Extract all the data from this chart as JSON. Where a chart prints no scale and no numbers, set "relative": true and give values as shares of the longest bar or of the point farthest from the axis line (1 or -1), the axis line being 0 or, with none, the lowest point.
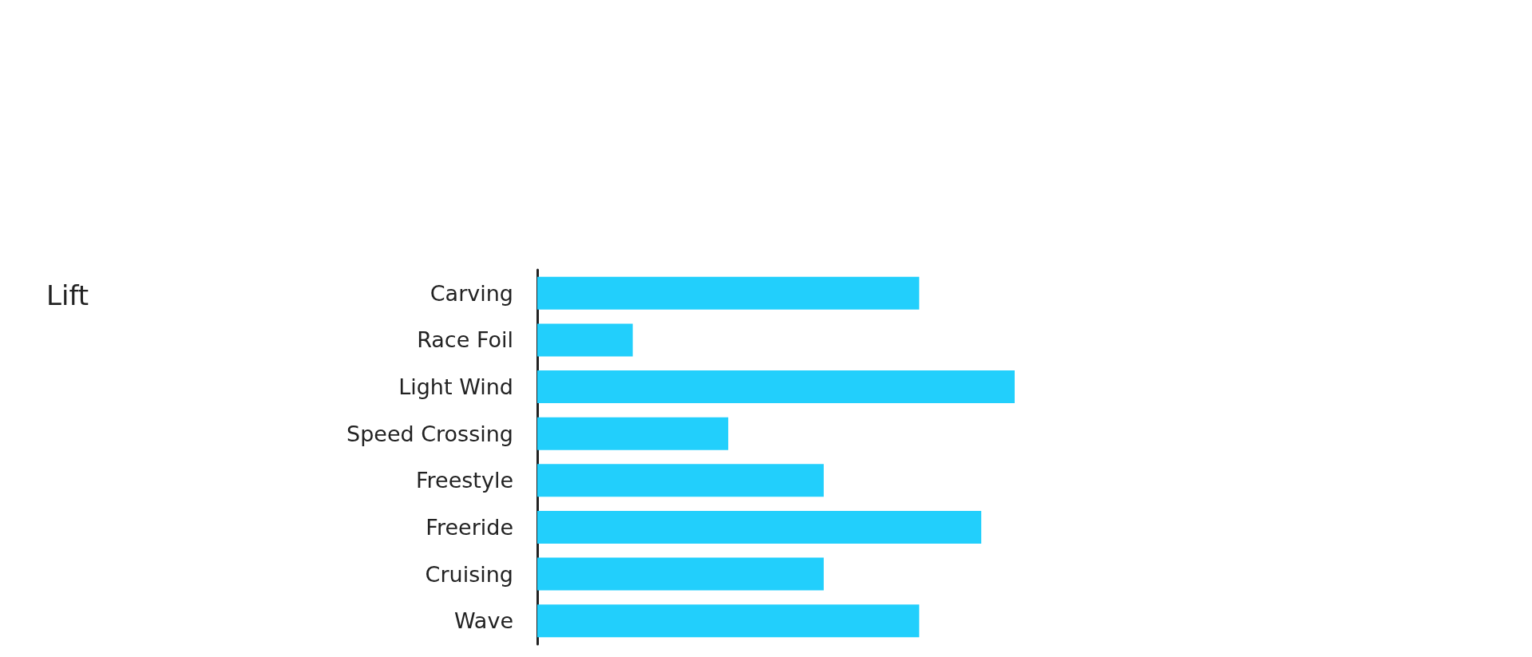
{
  "chart_data": {
    "type": "bar",
    "orientation": "horizontal",
    "relative": true,
    "title": "Lift",
    "categories": [
      "Carving",
      "Race Foil",
      "Light Wind",
      "Speed Crossing",
      "Freestyle",
      "Freeride",
      "Cruising",
      "Wave"
    ],
    "values": [
      0.8,
      0.2,
      1,
      0.4,
      0.6,
      0.93,
      0.6,
      0.8
    ],
    "color": "#22cffc"
  }
}
